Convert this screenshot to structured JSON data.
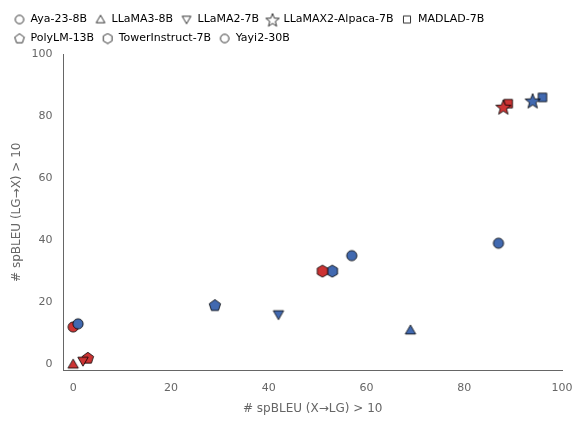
{
  "chart_data": {
    "type": "scatter",
    "xlabel": "# spBLEU (X→LG) > 10",
    "ylabel": "# spBLEU (LG→X) > 10",
    "xlim": [
      -2,
      100
    ],
    "ylim": [
      -2,
      100
    ],
    "xticks": [
      0,
      20,
      40,
      60,
      80,
      100
    ],
    "yticks": [
      0,
      20,
      40,
      60,
      80,
      100
    ],
    "grid": false,
    "legend": "upper left",
    "series": [
      {
        "name": "Aya-23-8B",
        "marker": "circle",
        "x": [
          0,
          1
        ],
        "values": [
          12,
          13
        ],
        "colors": [
          "#cc3333",
          "#4169b0"
        ]
      },
      {
        "name": "LLaMA3-8B",
        "marker": "triangle-up",
        "x": [
          69,
          0
        ],
        "values": [
          11,
          0
        ],
        "colors": [
          "#4169b0",
          "#cc3333"
        ]
      },
      {
        "name": "LLaMA2-7B",
        "marker": "triangle-down",
        "x": [
          42,
          2
        ],
        "values": [
          16,
          1
        ],
        "colors": [
          "#4169b0",
          "#cc3333"
        ]
      },
      {
        "name": "LLaMAX2-Alpaca-7B",
        "marker": "star",
        "x": [
          94,
          88
        ],
        "values": [
          85,
          83
        ],
        "colors": [
          "#4169b0",
          "#cc3333"
        ]
      },
      {
        "name": "MADLAD-7B",
        "marker": "square",
        "x": [
          96,
          89
        ],
        "values": [
          86,
          84
        ],
        "colors": [
          "#4169b0",
          "#cc3333"
        ]
      },
      {
        "name": "PolyLM-13B",
        "marker": "pentagon",
        "x": [
          29,
          3
        ],
        "values": [
          19,
          2
        ],
        "colors": [
          "#4169b0",
          "#cc3333"
        ]
      },
      {
        "name": "TowerInstruct-7B",
        "marker": "hexagon",
        "x": [
          53,
          51
        ],
        "values": [
          30,
          30
        ],
        "colors": [
          "#4169b0",
          "#cc3333"
        ]
      },
      {
        "name": "Yayi2-30B",
        "marker": "circle",
        "x": [
          57,
          87
        ],
        "values": [
          35,
          39
        ],
        "colors": [
          "#4169b0",
          "#4169b0"
        ]
      }
    ]
  }
}
